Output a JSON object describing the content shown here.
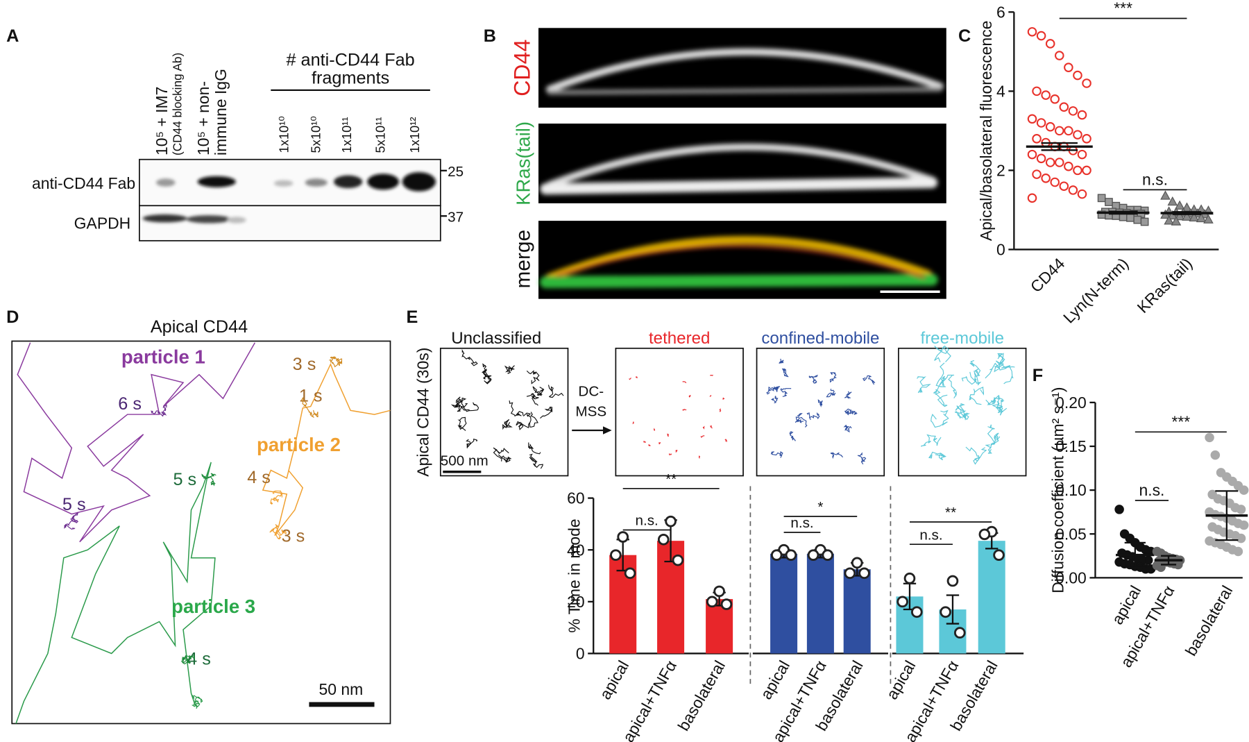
{
  "panel_labels": [
    "A",
    "B",
    "C",
    "D",
    "E",
    "F"
  ],
  "blot": {
    "lanes": [
      "10⁵ + IM7",
      "(CD44 blocking Ab)",
      "10⁵ + non-",
      "immune IgG"
    ],
    "doses": [
      "1x10¹⁰",
      "5x10¹⁰",
      "1x10¹¹",
      "5x10¹¹",
      "1x10¹²"
    ],
    "dose_title": [
      "# anti-CD44 Fab",
      "fragments"
    ],
    "rows": [
      "anti-CD44 Fab",
      "GAPDH"
    ],
    "markers": [
      "25",
      "37"
    ]
  },
  "imaging": {
    "channels": [
      "CD44",
      "KRas(tail)",
      "merge"
    ]
  },
  "tracks": {
    "title": "Apical CD44",
    "particles": [
      "particle 1",
      "particle 2",
      "particle 3"
    ],
    "times": [
      "6 s",
      "5 s",
      "3 s",
      "1 s",
      "4 s",
      "3 s",
      "5 s",
      "4 s"
    ],
    "scale_bar": "50 nm"
  },
  "classification": {
    "ylabel": "Apical CD44 (30s)",
    "modes": [
      "Unclassified",
      "tethered",
      "confined-mobile",
      "free-mobile"
    ],
    "method": [
      "DC-",
      "MSS"
    ],
    "scale_bar": "500 nm"
  },
  "chart_data": [
    {
      "type": "scatter_dot",
      "ylabel": "Apical/basolateral fluorescence",
      "categories": [
        "CD44",
        "Lyn(N-term)",
        "KRas(tail)"
      ],
      "points": [
        [
          5.5,
          5.4,
          5.2,
          4.9,
          4.6,
          4.4,
          4.2,
          4.0,
          3.9,
          3.8,
          3.6,
          3.5,
          3.4,
          3.3,
          3.2,
          3.1,
          3.0,
          3.0,
          2.9,
          2.8,
          2.8,
          2.7,
          2.6,
          2.6,
          2.5,
          2.4,
          2.4,
          2.3,
          2.2,
          2.2,
          2.1,
          2.0,
          2.0,
          1.9,
          1.8,
          1.7,
          1.6,
          1.5,
          1.4,
          1.3
        ],
        [
          1.3,
          1.2,
          1.1,
          1.05,
          1.0,
          1.0,
          0.98,
          0.95,
          0.95,
          0.93,
          0.92,
          0.9,
          0.9,
          0.88,
          0.86,
          0.85,
          0.82,
          0.8,
          0.75,
          0.7
        ],
        [
          1.35,
          1.2,
          1.1,
          1.05,
          1.0,
          1.0,
          0.97,
          0.95,
          0.93,
          0.92,
          0.9,
          0.9,
          0.88,
          0.87,
          0.85,
          0.83,
          0.82,
          0.8,
          0.78,
          0.75,
          0.72,
          0.7
        ]
      ],
      "means": [
        2.6,
        0.93,
        0.92
      ],
      "errors": [
        0.09,
        0.03,
        0.03
      ],
      "colors": [
        "#e8312a",
        "#555555",
        "#555555"
      ],
      "markers": [
        "circle",
        "square",
        "triangle"
      ],
      "ylim": [
        0,
        6
      ],
      "yticks": [
        0,
        2,
        4,
        6
      ],
      "annotations": [
        "***",
        "n.s."
      ]
    },
    {
      "type": "bar",
      "ylabel": "% Time in mode",
      "categories": [
        "apical",
        "apical+TNFα",
        "basolateral"
      ],
      "values": [
        38,
        43.5,
        21
      ],
      "errors": [
        6,
        8,
        2.5
      ],
      "points": [
        [
          45,
          38,
          31
        ],
        [
          51,
          44,
          36
        ],
        [
          24,
          20,
          19
        ]
      ],
      "color": "#e8262a",
      "ylim": [
        0,
        60
      ],
      "yticks": [
        0,
        20,
        40,
        60
      ],
      "annotations": [
        "**",
        "n.s."
      ]
    },
    {
      "type": "bar",
      "categories": [
        "apical",
        "apical+TNFα",
        "basolateral"
      ],
      "values": [
        38.5,
        38.5,
        32.5
      ],
      "errors": [
        1.5,
        1.5,
        2.5
      ],
      "points": [
        [
          40,
          38,
          38
        ],
        [
          40,
          38,
          38
        ],
        [
          35,
          31,
          31
        ]
      ],
      "color": "#2f4fa0",
      "ylim": [
        0,
        60
      ],
      "annotations": [
        "*",
        "n.s."
      ]
    },
    {
      "type": "bar",
      "categories": [
        "apical",
        "apical+TNFα",
        "basolateral"
      ],
      "values": [
        22,
        17,
        43.5
      ],
      "errors": [
        5,
        5.5,
        3
      ],
      "points": [
        [
          29,
          20,
          16
        ],
        [
          28,
          16,
          8
        ],
        [
          47,
          46,
          38
        ]
      ],
      "color": "#5cc8d8",
      "ylim": [
        0,
        60
      ],
      "annotations": [
        "**",
        "n.s."
      ]
    },
    {
      "type": "scatter_dot",
      "ylabel": "Diffusion coefficient (µm² s⁻¹)",
      "categories": [
        "apical",
        "apical+TNFα",
        "basolateral"
      ],
      "points": [
        [
          0.078,
          0.05,
          0.045,
          0.04,
          0.035,
          0.032,
          0.03,
          0.028,
          0.026,
          0.024,
          0.022,
          0.02,
          0.02,
          0.018,
          0.016,
          0.015,
          0.013,
          0.012,
          0.01,
          0.01
        ],
        [
          0.03,
          0.028,
          0.025,
          0.023,
          0.022,
          0.021,
          0.02,
          0.019,
          0.018,
          0.018,
          0.017,
          0.016,
          0.015,
          0.014,
          0.012
        ],
        [
          0.16,
          0.14,
          0.12,
          0.115,
          0.11,
          0.105,
          0.1,
          0.095,
          0.09,
          0.088,
          0.085,
          0.08,
          0.078,
          0.075,
          0.072,
          0.07,
          0.068,
          0.065,
          0.062,
          0.06,
          0.058,
          0.055,
          0.052,
          0.05,
          0.048,
          0.045,
          0.042,
          0.04,
          0.038,
          0.035,
          0.032,
          0.03
        ]
      ],
      "means": [
        0.026,
        0.02,
        0.071
      ],
      "errors": [
        0.014,
        0.005,
        0.028
      ],
      "colors": [
        "#111111",
        "#666666",
        "#aaaaaa"
      ],
      "markers": [
        "circle",
        "circle",
        "circle"
      ],
      "ylim": [
        0,
        0.2
      ],
      "yticks": [
        {
          "value": 0,
          "label": "0.00"
        },
        {
          "value": 0.05,
          "label": "0.05"
        },
        {
          "value": 0.1,
          "label": "0.10"
        },
        {
          "value": 0.15,
          "label": "0.15"
        },
        {
          "value": 0.2,
          "label": "0.20"
        }
      ],
      "annotations": [
        "***",
        "n.s."
      ]
    }
  ]
}
